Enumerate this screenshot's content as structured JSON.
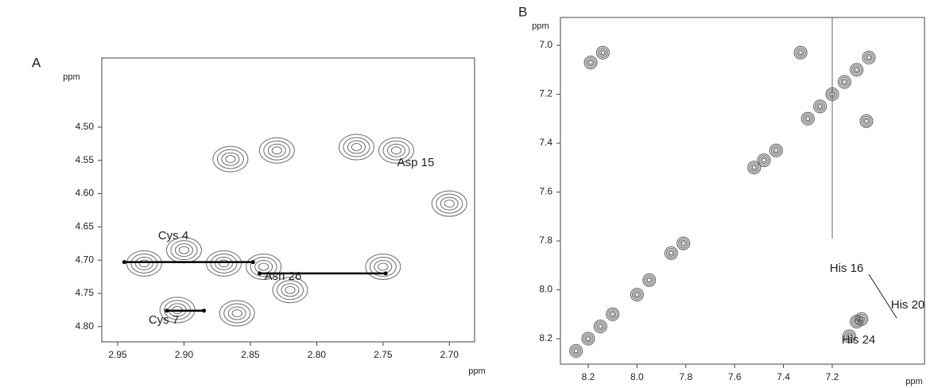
{
  "chart_data": [
    {
      "type": "contour",
      "panel_label": "A",
      "x_label": "ppm",
      "y_label": "ppm",
      "color": "#6a6a6a",
      "xlim": [
        2.962,
        2.681
      ],
      "ylim": [
        4.396,
        4.823
      ],
      "xticks": [
        2.95,
        {
          "value": 2.9,
          "label": "2.90"
        },
        2.85,
        {
          "value": 2.8,
          "label": "2.80"
        },
        2.75,
        {
          "value": 2.7,
          "label": "2.70"
        }
      ],
      "yticks": [
        {
          "value": 4.5,
          "label": "4.50"
        },
        4.55,
        {
          "value": 4.6,
          "label": "4.60"
        },
        4.65,
        {
          "value": 4.7,
          "label": "4.70"
        },
        4.75,
        {
          "value": 4.8,
          "label": "4.80"
        }
      ],
      "peaks": {
        "x": [
          2.93,
          2.87,
          2.84,
          2.75,
          2.7,
          2.83,
          2.77,
          2.74,
          2.865,
          2.905,
          2.86,
          2.82,
          2.9
        ],
        "y": [
          4.705,
          4.705,
          4.71,
          4.71,
          4.615,
          4.535,
          4.53,
          4.535,
          4.548,
          4.775,
          4.78,
          4.745,
          4.685
        ]
      },
      "connections": [
        {
          "x": [
            2.945,
            2.848
          ],
          "y": [
            4.703,
            4.703
          ]
        },
        {
          "x": [
            2.843,
            2.748
          ],
          "y": [
            4.72,
            4.72
          ]
        },
        {
          "x": [
            2.913,
            2.885
          ],
          "y": [
            4.776,
            4.776
          ]
        }
      ],
      "annotations": [
        "Asp 15",
        "Cys 4",
        "Asn 26",
        "Cys 7"
      ]
    },
    {
      "type": "contour",
      "panel_label": "B",
      "x_label": "ppm",
      "y_label": "ppm",
      "color": "#555555",
      "xlim": [
        8.314,
        6.822
      ],
      "ylim": [
        6.886,
        8.304
      ],
      "xticks": [
        8.2,
        {
          "value": 8.0,
          "label": "8.0"
        },
        7.8,
        7.6,
        7.4,
        7.2
      ],
      "yticks": [
        {
          "value": 7.0,
          "label": "7.0"
        },
        7.2,
        7.4,
        7.6,
        7.8,
        {
          "value": 8.0,
          "label": "8.0"
        },
        8.2
      ],
      "peaks": {
        "x": [
          8.25,
          8.2,
          8.15,
          8.1,
          8.0,
          7.95,
          7.86,
          7.81,
          7.52,
          7.48,
          7.43,
          7.3,
          7.25,
          7.2,
          7.15,
          7.1,
          7.05,
          8.19,
          8.14,
          7.33,
          7.06,
          7.1,
          7.08,
          7.13
        ],
        "y": [
          8.25,
          8.2,
          8.15,
          8.1,
          8.02,
          7.96,
          7.85,
          7.81,
          7.5,
          7.47,
          7.43,
          7.3,
          7.25,
          7.2,
          7.15,
          7.1,
          7.05,
          7.07,
          7.03,
          7.03,
          7.31,
          8.13,
          8.12,
          8.19
        ]
      },
      "annotations": [
        "His 16",
        "His 20",
        "His 24"
      ]
    }
  ]
}
